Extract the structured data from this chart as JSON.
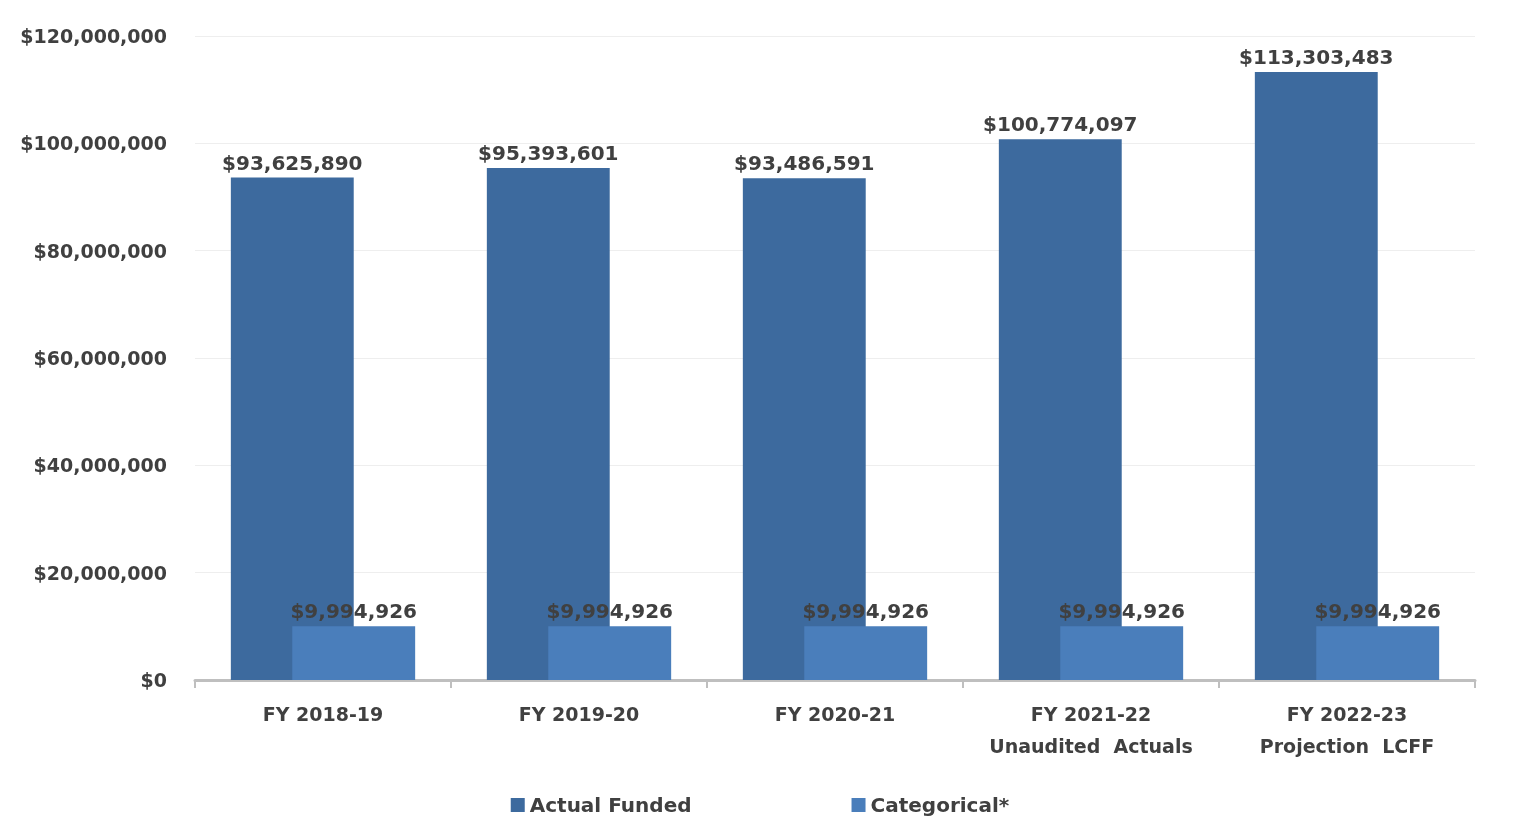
{
  "chart_data": {
    "type": "bar",
    "categories": [
      "FY 2018-19",
      "FY 2019-20",
      "FY 2020-21",
      "FY 2021-22\nUnaudited  Actuals",
      "FY 2022-23\nProjection  LCFF"
    ],
    "series": [
      {
        "name": "Actual Funded",
        "color": "#3d6a9e",
        "values": [
          93625890,
          95393601,
          93486591,
          100774097,
          113303483
        ],
        "value_labels": [
          "$93,625,890",
          "$95,393,601",
          "$93,486,591",
          "$100,774,097",
          "$113,303,483"
        ]
      },
      {
        "name": "Categorical*",
        "color": "#4a7ebb",
        "values": [
          9994926,
          9994926,
          9994926,
          9994926,
          9994926
        ],
        "value_labels": [
          "$9,994,926",
          "$9,994,926",
          "$9,994,926",
          "$9,994,926",
          "$9,994,926"
        ]
      }
    ],
    "ylim": [
      0,
      120000000
    ],
    "yticks": [
      {
        "value": 0,
        "label": "$0"
      },
      {
        "value": 20000000,
        "label": "$20,000,000"
      },
      {
        "value": 40000000,
        "label": "$40,000,000"
      },
      {
        "value": 60000000,
        "label": "$60,000,000"
      },
      {
        "value": 80000000,
        "label": "$80,000,000"
      },
      {
        "value": 100000000,
        "label": "$100,000,000"
      },
      {
        "value": 120000000,
        "label": "$120,000,000"
      }
    ],
    "grid": "y",
    "legend": "bottom"
  }
}
